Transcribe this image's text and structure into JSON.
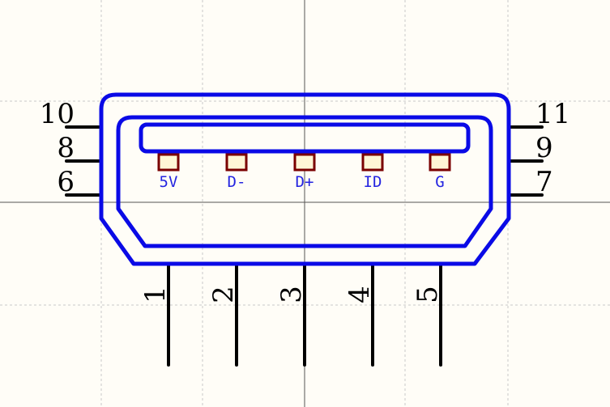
{
  "colors": {
    "background": "#fffdf7",
    "grid": "#c9c9c9",
    "crosshair": "#555555",
    "body_outline": "#0a0ae6",
    "pin_line": "#000000",
    "pad_stroke": "#7a0000",
    "pad_fill": "#fff6d5",
    "signal_text": "#2424e0",
    "pin_text": "#000000"
  },
  "signals": [
    {
      "label": "5V"
    },
    {
      "label": "D-"
    },
    {
      "label": "D+"
    },
    {
      "label": "ID"
    },
    {
      "label": "G"
    }
  ],
  "bottom_pins": [
    {
      "number": "1"
    },
    {
      "number": "2"
    },
    {
      "number": "3"
    },
    {
      "number": "4"
    },
    {
      "number": "5"
    }
  ],
  "left_pins": [
    {
      "number": "10"
    },
    {
      "number": "8"
    },
    {
      "number": "6"
    }
  ],
  "right_pins": [
    {
      "number": "11"
    },
    {
      "number": "9"
    },
    {
      "number": "7"
    }
  ]
}
